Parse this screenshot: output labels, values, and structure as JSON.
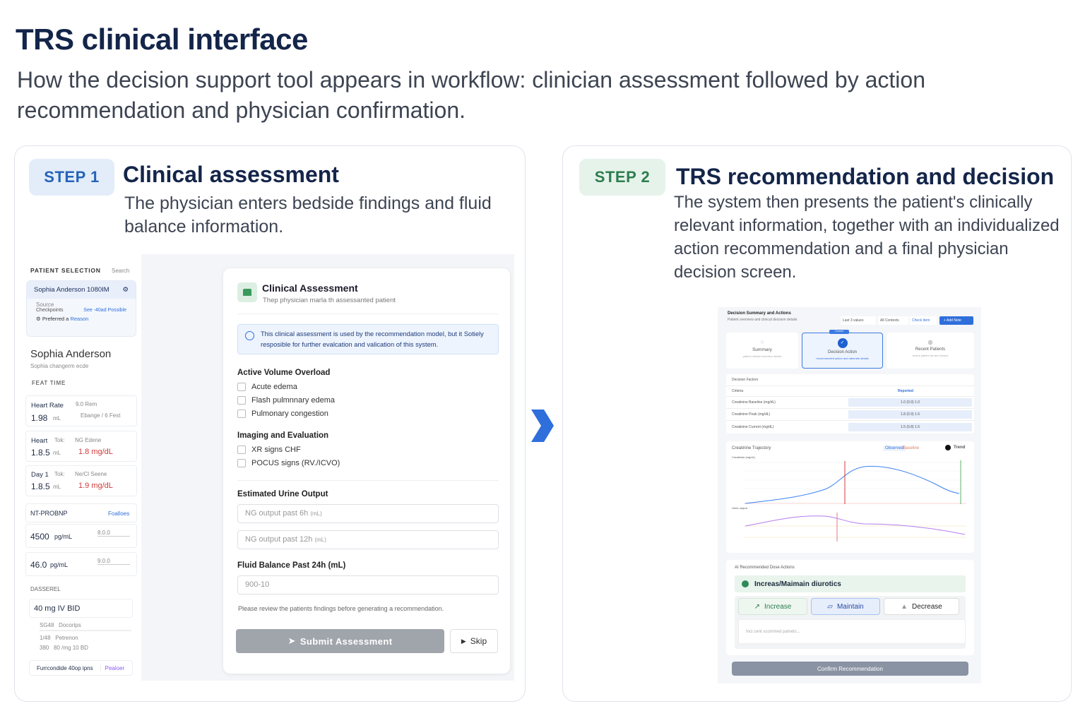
{
  "title": "TRS clinical interface",
  "subtitle": "How the decision support tool appears in workflow: clinician assessment followed by action recommendation and physician confirmation.",
  "step1": {
    "badge": "STEP 1",
    "title": "Clinical assessment",
    "desc": "The physician enters bedside findings and fluid balance information.",
    "sidebar": {
      "header": "PATIENT SELECTION",
      "header_link": "Search",
      "selected_patient": "Sophia Anderson 1080IM",
      "meta1": "Source",
      "meta2": "Checkpoints",
      "meta_link": "See -40ad Possible",
      "meta3": "Preferred a",
      "meta3_link": "Reason",
      "patient_name": "Sophia Anderson",
      "patient_sub": "Sophia changerm ecde",
      "section": "FEAT TIME",
      "vitals": [
        {
          "label": "Heart Rate",
          "aux": "9.0 Rem",
          "value": "1.98",
          "unit": "mL",
          "note": "Ebange / 6 Fest",
          "red": ""
        },
        {
          "label": "Heart",
          "aux2": "Tok:",
          "aux": "NG Edene",
          "value": "1.8.5",
          "unit": "mL",
          "note": "",
          "red": "1.8 mg/dL"
        },
        {
          "label": "Day 1",
          "aux2": "Tok:",
          "aux": "Ne/Cl Seene",
          "value": "1.8.5",
          "unit": "mL",
          "note": "",
          "red": "1.9 mg/dL"
        }
      ],
      "ntprobnp": {
        "label": "NT-PROBNP",
        "link": "Foalloes",
        "rows": [
          {
            "value": "4500",
            "unit": "pg/mL",
            "ref": "8.0.0"
          },
          {
            "value": "46.0",
            "unit": "pg/mL",
            "ref": "9.0.0"
          }
        ]
      },
      "dose_section": "DASSEREL",
      "dose": "40 mg IV BID",
      "dose_rows": [
        [
          "SG48",
          "Docorips"
        ],
        [
          "1/48",
          "Petrenon"
        ],
        [
          "380",
          "80 /mg 10 BD"
        ]
      ],
      "footer": "Furrcondide 40op ipns",
      "footer_link": "Pealoer"
    },
    "form": {
      "title": "Clinical Assessment",
      "subtitle": "Thep physician marla th assessanted patient",
      "notice": "This clinical assessment is used by the recommendation model, but it Sotiely resposible for further evalcation and valication of this system.",
      "groups": [
        {
          "title": "Active Volume Overload",
          "items": [
            "Acute edema",
            "Flash pulmnnary edema",
            "Pulmonary congestion"
          ]
        },
        {
          "title": "Imaging and Evaluation",
          "items": [
            "XR signs CHF",
            "POCUS signs (RV./ICVO)"
          ]
        }
      ],
      "urine_label": "Estimated Urine Output",
      "urine_6h": "NG output past 6h",
      "urine_12h": "NG output past 12h",
      "unit": "(mL)",
      "fluid_label": "Fluid Balance Past 24h (mL)",
      "fluid_placeholder": "900-10",
      "hint": "Please review the patients findings before generating a recommendation.",
      "submit": "Submit Assessment",
      "skip": "Skip"
    }
  },
  "step2": {
    "badge": "STEP 2",
    "title": "TRS recommendation and decision",
    "desc": "The system then presents the patient's clinically relevant information, together with an individualized action recommendation and a final physician decision screen.",
    "mini": {
      "header": "Decision Summary and Actions",
      "header_sub": "Patient overview and clinical decision details",
      "filters": [
        "Last 3 values",
        "All Contexts",
        "Check Item"
      ],
      "action": "+ Add Note",
      "tabs": [
        {
          "label": "Summary",
          "sub": "patient clinical overview details"
        },
        {
          "label": "Decision Action",
          "sub": "recommended action and rationale details",
          "badge": "Current"
        },
        {
          "label": "Recent Patients",
          "sub": "recent patient list and history"
        }
      ],
      "table_title": "Decision Factors",
      "col1": "Criteria",
      "col2": "Reported",
      "rows": [
        [
          "Creatinine Baseline (mg/dL)",
          "1.0 (0.9) 1.0"
        ],
        [
          "Creatinine Peak (mg/dL)",
          "1.8 (0.9) 1.6"
        ],
        [
          "Creatinine Current (mg/dL)",
          "1.5 (0.8) 1.5"
        ]
      ],
      "chart_title": "Creatinine Trajectory",
      "legend": [
        "Observed",
        "Baseline"
      ],
      "toggle": "Trend",
      "chart1_label": "Creatinine (mg/dL)",
      "chart2_label": "Urine output",
      "rec_title": "AI Recommended Dose Actions",
      "rec": "Increas/Maimain diurotics",
      "options": [
        "Increase",
        "Maintain",
        "Decrease"
      ],
      "comment_placeholder": "Inct cent scommed patnets...",
      "confirm": "Confirm Recommendation"
    }
  },
  "colors": {
    "navy": "#14254a",
    "step1_bg": "#e3edf9",
    "step1_fg": "#2563b8",
    "step2_bg": "#e6f3ea",
    "step2_fg": "#2e7d4f",
    "arrow": "#2f6fdc",
    "red": "#d33b3b",
    "blue": "#2f6fdc"
  }
}
